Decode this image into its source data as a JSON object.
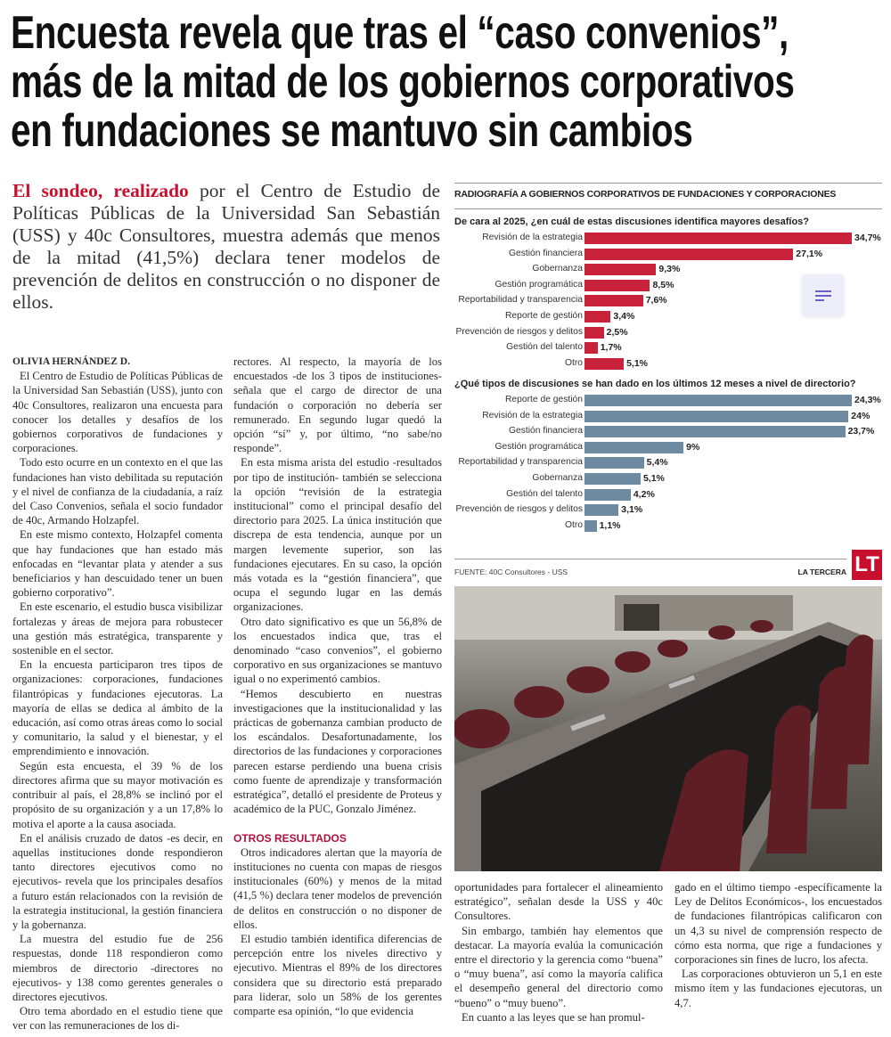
{
  "headline": [
    "Encuesta revela que tras el “caso convenios”,",
    "más de la mitad de los gobiernos corporativos",
    "en fundaciones se mantuvo sin cambios"
  ],
  "lede": {
    "lead_in": "El sondeo, realizado",
    "text": " por el Centro de Estudio de Políticas Públicas de la Universidad San Sebastián (USS) y 40c Consultores, muestra además que menos de la mitad (41,5%) declara tener modelos de prevención de delitos en construcción o no disponer de ellos."
  },
  "byline": "OLIVIA HERNÁNDEZ D.",
  "col1": [
    "El Centro de Estudio de Políticas Públicas de la Universidad San Sebastián (USS), junto con 40c Consultores, realizaron una encuesta para conocer los detalles y desafíos de los gobiernos corporativos de fundaciones y corporaciones.",
    "Todo esto ocurre en un contexto en el que las fundaciones han visto debilitada su reputación y el nivel de confianza de la ciudadanía, a raíz del Caso Convenios, señala el socio fundador de 40c, Armando Holzapfel.",
    "En este mismo contexto, Holzapfel comenta que hay fundaciones que han estado más enfocadas en “levantar plata y atender a sus beneficiarios y han descuidado tener un buen gobierno corporativo”.",
    "En este escenario, el estudio busca visibilizar fortalezas y áreas de mejora para robustecer una gestión más estratégica, transparente y sostenible en el sector.",
    "En la encuesta participaron tres tipos de organizaciones: corporaciones, fundaciones filantrópicas y fundaciones ejecutoras. La mayoría de ellas se dedica al ámbito de la educación, así como otras áreas como lo social y comunitario, la salud y el bienestar, y el emprendimiento e innovación.",
    "Según esta encuesta, el 39 % de los directores afirma que su mayor motivación es contribuir al país, el 28,8% se inclinó por el propósito de su organización y a un 17,8% lo motiva el aporte a la causa asociada.",
    "En el análisis cruzado de datos -es decir, en aquellas instituciones donde respondieron tanto directores ejecutivos como no ejecutivos- revela que los principales desafíos a futuro están relacionados con la revisión de la estrategia institucional, la gestión financiera y la gobernanza.",
    "La muestra del estudio fue de 256 respuestas, donde 118 respondieron como miembros de directorio -directores no ejecutivos- y 138 como gerentes generales o directores ejecutivos.",
    "Otro tema abordado en el estudio tiene que ver con las remuneraciones de los di-"
  ],
  "col2": [
    "rectores. Al respecto, la mayoría de los encuestados -de los 3 tipos de instituciones- señala que el cargo de director de una fundación o corporación no debería ser remunerado. En segundo lugar quedó la opción “sí” y, por último, “no sabe/no responde”.",
    "En esta misma arista del estudio -resultados por tipo de institución- también se selecciona la opción “revisión de la estrategia institucional” como el principal desafío del directorio para 2025. La única institución que discrepa de esta tendencia, aunque por un margen levemente superior, son las fundaciones ejecutares. En su caso, la opción más votada es la “gestión financiera”, que ocupa el segundo lugar en las demás organizaciones.",
    "Otro dato significativo es que un 56,8% de los encuestados indica que, tras el denominado “caso convenios”, el gobierno corporativo en sus organizaciones se mantuvo igual o no experimentó cambios.",
    "“Hemos descubierto en nuestras investigaciones que la institucionalidad y las prácticas de gobernanza cambian producto de los escándalos. Desafortunadamente, los directorios de las fundaciones y corporaciones parecen estarse perdiendo una buena crisis como fuente de aprendizaje y transformación estratégica”, detalló el presidente de Proteus y académico de la PUC, Gonzalo Jiménez."
  ],
  "subhead": "OTROS RESULTADOS",
  "col2b": [
    "Otros indicadores alertan que la mayoría de instituciones no cuenta con mapas de riesgos institucionales (60%) y menos de la mitad (41,5 %) declara tener modelos de prevención de delitos en construcción o no disponer de ellos.",
    "El estudio también identifica diferencias de percepción entre los niveles directivo y ejecutivo. Mientras el 89% de los directores considera que su directorio está preparado para liderar, solo un 58% de los gerentes comparte esa opinión, “lo que evidencia"
  ],
  "col3": [
    "oportunidades para fortalecer el alineamiento estratégico”, señalan desde la USS y 40c Consultores.",
    "Sin embargo, también hay elementos que destacar. La mayoría evalúa la comunicación entre el directorio y la gerencia como “buena” o “muy buena”, así como la mayoría califica el desempeño general del directorio como “bueno” o “muy bueno”.",
    "En cuanto a las leyes que se han promul-"
  ],
  "col4": [
    "gado en el último tiempo -específicamente la Ley de Delitos Económicos-, los encuestados de fundaciones filantrópicas calificaron con un 4,3 su nivel de comprensión respecto de cómo esta norma, que rige a fundaciones y corporaciones sin fines de lucro, los afecta.",
    "Las corporaciones obtuvieron un 5,1 en este mismo ítem y las fundaciones ejecutoras, un 4,7."
  ],
  "infographic": {
    "title": "RADIOGRAFÍA A GOBIERNOS CORPORATIVOS DE FUNDACIONES Y CORPORACIONES",
    "source": "FUENTE: 40C Consultores - USS",
    "brand": "LA TERCERA",
    "logo": "LT"
  },
  "chart_data": [
    {
      "type": "bar",
      "orientation": "horizontal",
      "title": "De cara al 2025, ¿en cuál de estas discusiones identifica mayores desafíos?",
      "color": "#c8233a",
      "categories": [
        "Revisión de la estrategia",
        "Gestión financiera",
        "Gobernanza",
        "Gestión programática",
        "Reportabilidad y transparencia",
        "Reporte de gestión",
        "Prevención de riesgos y delitos",
        "Gestión del talento",
        "Otro"
      ],
      "values": [
        34.7,
        27.1,
        9.3,
        8.5,
        7.6,
        3.4,
        2.5,
        1.7,
        5.1
      ],
      "labels": [
        "34,7%",
        "27,1%",
        "9,3%",
        "8,5%",
        "7,6%",
        "3,4%",
        "2,5%",
        "1,7%",
        "5,1%"
      ]
    },
    {
      "type": "bar",
      "orientation": "horizontal",
      "title": "¿Qué tipos de discusiones se han dado en los últimos 12 meses a nivel de directorio?",
      "color": "#6e8aa0",
      "categories": [
        "Reporte de gestión",
        "Revisión de la estrategia",
        "Gestión financiera",
        "Gestión programática",
        "Reportabilidad y transparencia",
        "Gobernanza",
        "Gestión del talento",
        "Prevención de riesgos y delitos",
        "Otro"
      ],
      "values": [
        24.3,
        24,
        23.7,
        9,
        5.4,
        5.1,
        4.2,
        3.1,
        1.1
      ],
      "labels": [
        "24,3%",
        "24%",
        "23,7%",
        "9%",
        "5,4%",
        "5,1%",
        "4,2%",
        "3,1%",
        "1,1%"
      ]
    }
  ]
}
